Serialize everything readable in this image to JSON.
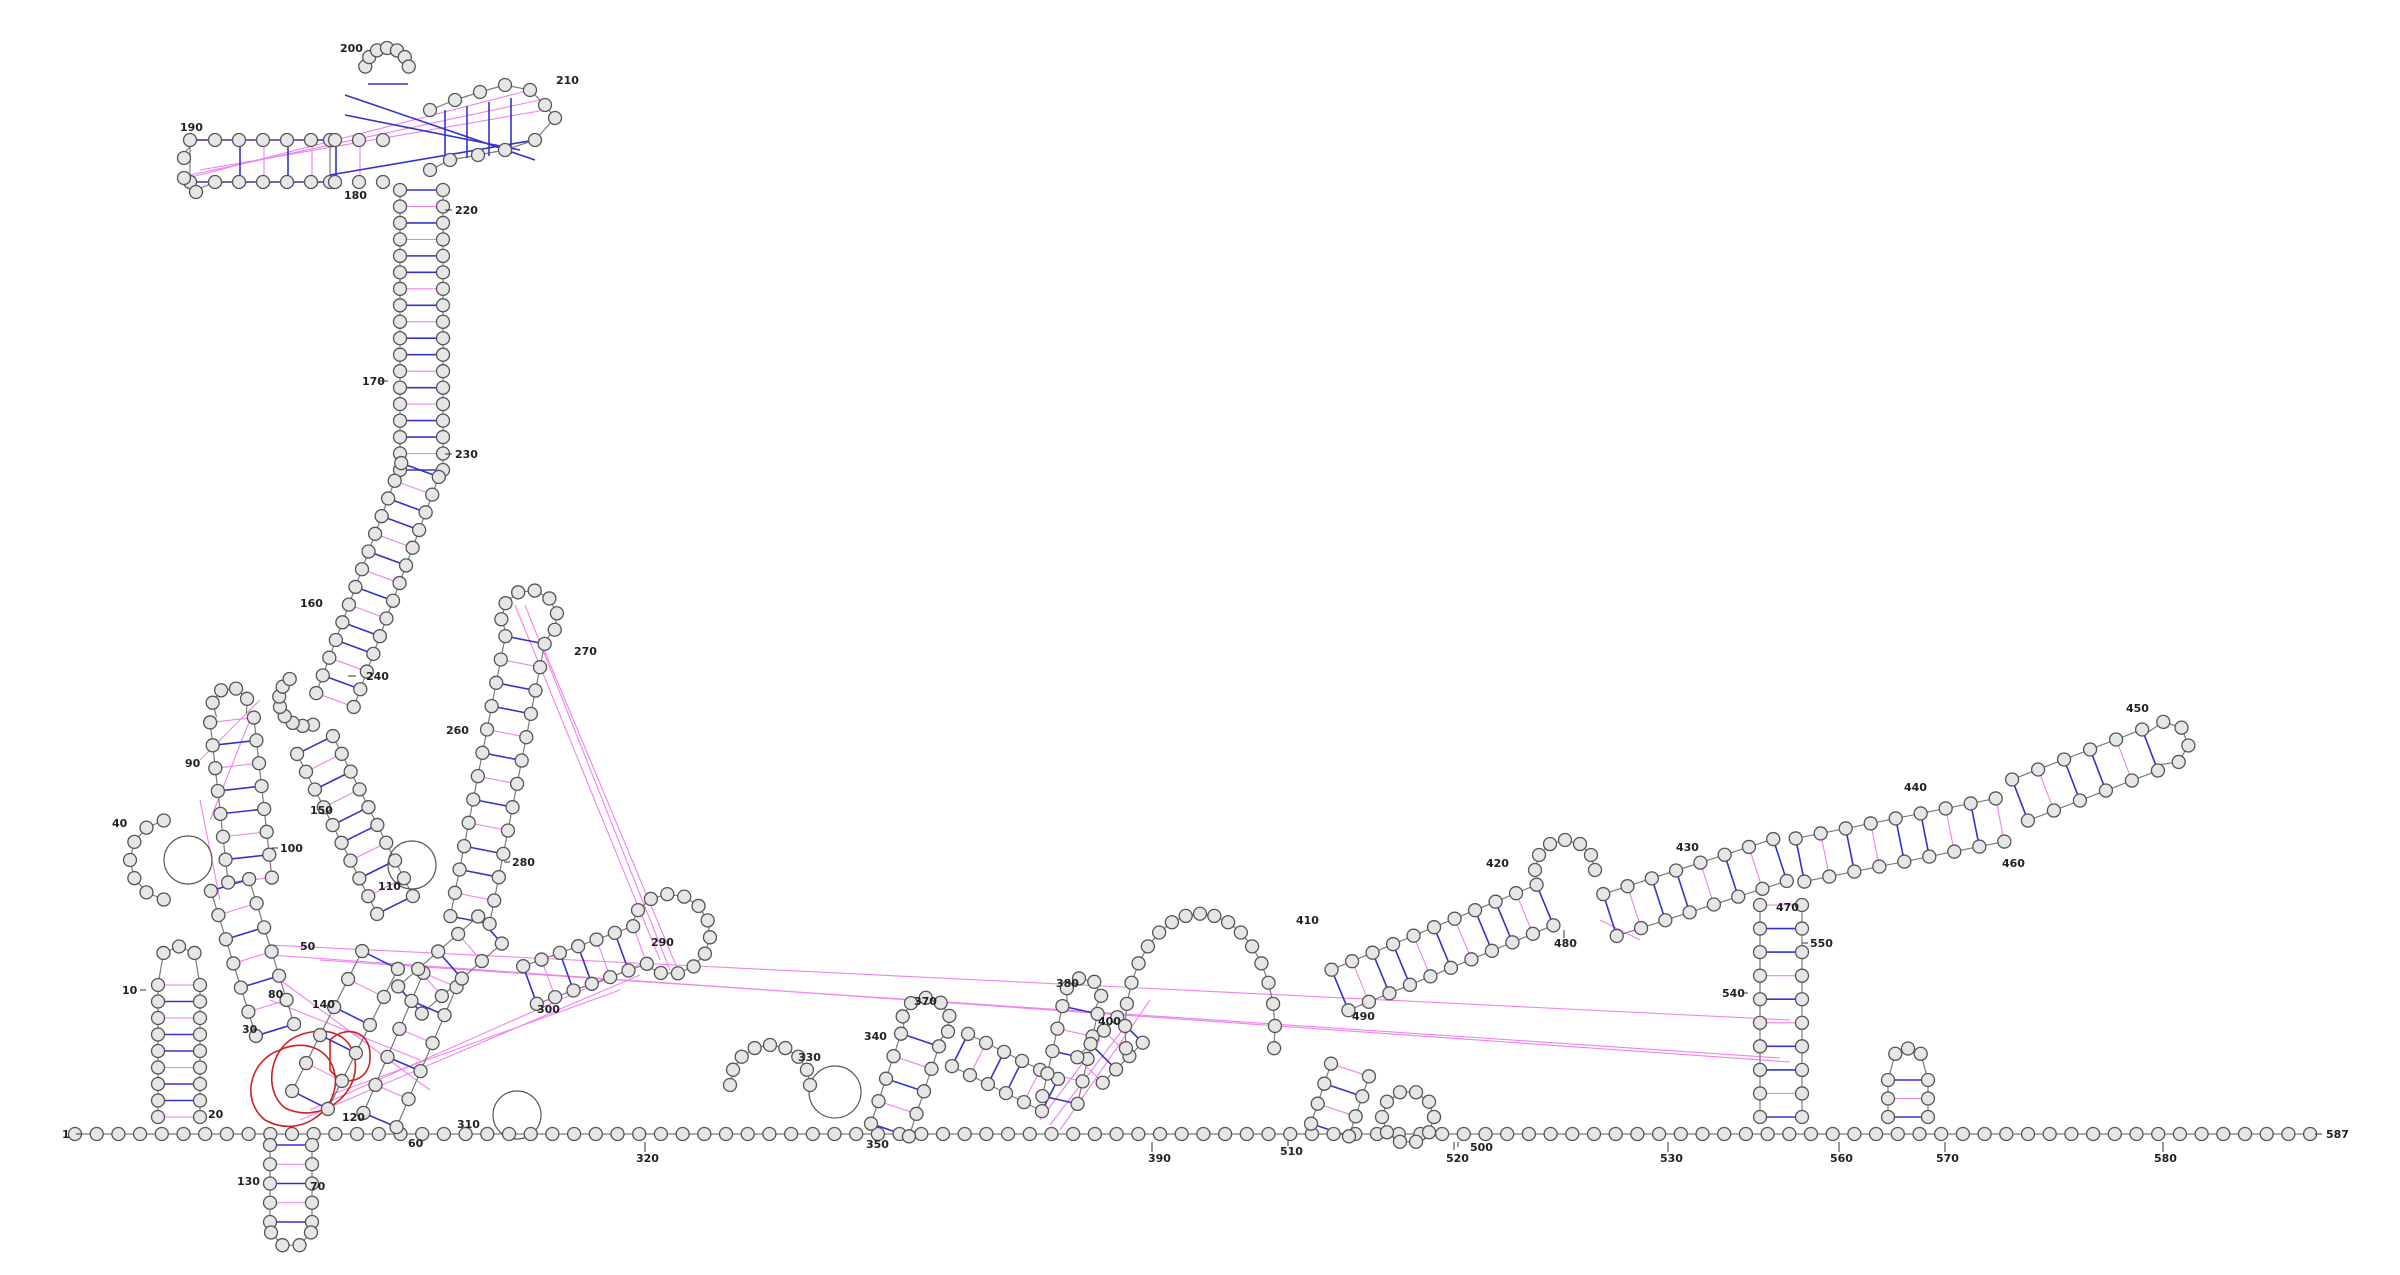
{
  "diagram": {
    "type": "rna-secondary-structure",
    "sequence_length": 587,
    "colors": {
      "nucleotide_fill": "#e6e6e6",
      "canonical_pair": "#3333cc",
      "noncanonical_pair": "#ee82ee",
      "highlight_ring": "#cc2222"
    },
    "position_labels": [
      "1",
      "10",
      "20",
      "30",
      "40",
      "50",
      "60",
      "70",
      "80",
      "90",
      "100",
      "110",
      "120",
      "130",
      "140",
      "150",
      "160",
      "170",
      "180",
      "190",
      "200",
      "210",
      "220",
      "230",
      "240",
      "260",
      "270",
      "280",
      "290",
      "300",
      "310",
      "320",
      "330",
      "340",
      "350",
      "370",
      "380",
      "390",
      "400",
      "410",
      "420",
      "430",
      "440",
      "450",
      "460",
      "470",
      "480",
      "490",
      "500",
      "510",
      "520",
      "530",
      "540",
      "550",
      "560",
      "570",
      "580",
      "587"
    ]
  }
}
